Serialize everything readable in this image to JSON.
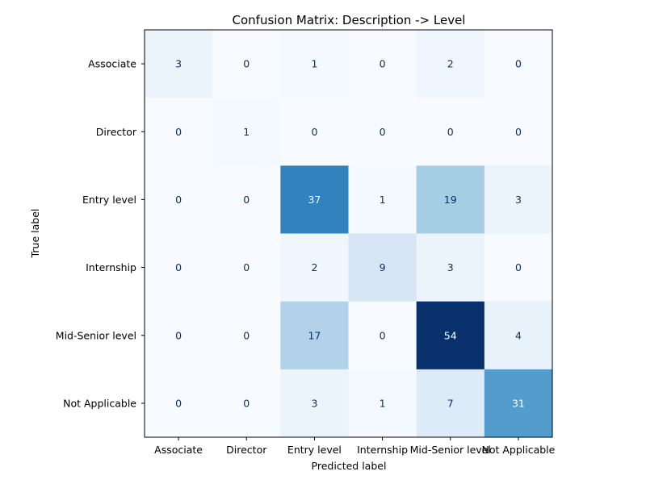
{
  "chart_data": {
    "type": "heatmap",
    "title": "Confusion Matrix: Description -> Level",
    "xlabel": "Predicted label",
    "ylabel": "True label",
    "x_categories": [
      "Associate",
      "Director",
      "Entry level",
      "Internship",
      "Mid-Senior level",
      "Not Applicable"
    ],
    "y_categories": [
      "Associate",
      "Director",
      "Entry level",
      "Internship",
      "Mid-Senior level",
      "Not Applicable"
    ],
    "values": [
      [
        3,
        0,
        1,
        0,
        2,
        0
      ],
      [
        0,
        1,
        0,
        0,
        0,
        0
      ],
      [
        0,
        0,
        37,
        1,
        19,
        3
      ],
      [
        0,
        0,
        2,
        9,
        3,
        0
      ],
      [
        0,
        0,
        17,
        0,
        54,
        4
      ],
      [
        0,
        0,
        3,
        1,
        7,
        31
      ]
    ],
    "colormap": "Blues",
    "colorbar": false,
    "grid": false
  }
}
